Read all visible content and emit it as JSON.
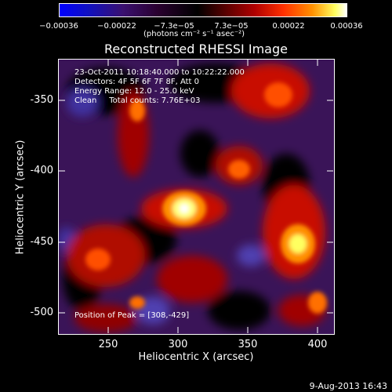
{
  "colorbar": {
    "ticks": [
      "−0.00036",
      "−0.00022",
      "−7.3e−05",
      "7.3e−05",
      "0.00022",
      "0.00036"
    ],
    "units": "(photons cm⁻² s⁻¹ asec⁻²)"
  },
  "title": "Reconstructed RHESSI Image",
  "info": {
    "line1": "23-Oct-2011 10:18:40.000 to 10:22:22.000",
    "line2": "Detectors: 4F 5F 6F 7F 8F, Att 0",
    "line3": "Energy Range: 12.0 - 25.0 keV",
    "line4": "Clean     Total counts: 7.76E+03"
  },
  "peak_label": "Position of Peak = [308,-429]",
  "axes": {
    "xlabel": "Heliocentric X (arcsec)",
    "ylabel": "Heliocentric Y (arcsec)",
    "x_ticks": [
      "250",
      "300",
      "350",
      "400"
    ],
    "y_ticks": [
      "-350",
      "-400",
      "-450",
      "-500"
    ]
  },
  "footer_date": "9-Aug-2013 16:43"
}
